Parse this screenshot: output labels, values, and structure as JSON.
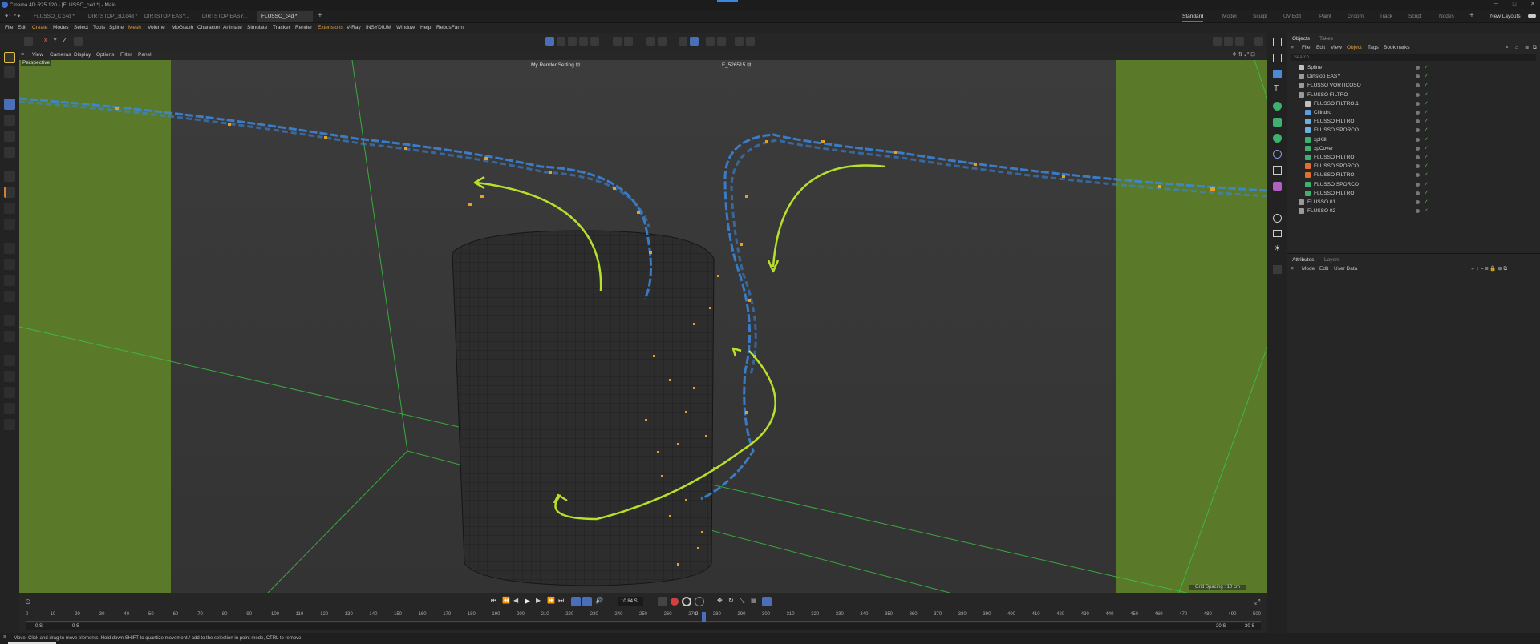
{
  "window": {
    "title": "Cinema 4D R25.120 - [FLUSSO_c4d *] - Main",
    "controls": [
      "─",
      "□",
      "✕"
    ]
  },
  "doc_tabs": [
    "FLUSSO_C.c4d *",
    "DIRTSTOP_3D.c4d *",
    "DIRTSTOP EASY...",
    "DIRTSTOP EASY...",
    "FLUSSO_c4d *"
  ],
  "layout_tabs": [
    "Standard",
    "Model",
    "Sculpt",
    "UV Edit",
    "Paint",
    "Groom",
    "Track",
    "Script",
    "Nodes"
  ],
  "new_layouts": "New Layouts",
  "menu": [
    "File",
    "Edit",
    "Create",
    "Modes",
    "Select",
    "Tools",
    "Spline",
    "Mesh",
    "Volume",
    "MoGraph",
    "Character",
    "Animate",
    "Simulate",
    "Tracker",
    "Render",
    "Extensions",
    "V-Ray",
    "INSYDIUM",
    "Window",
    "Help",
    "RebusFarm"
  ],
  "coord_buttons": [
    "X",
    "Y",
    "Z"
  ],
  "viewport": {
    "menu": [
      "View",
      "Cameras",
      "Display",
      "Options",
      "Filter",
      "Panel"
    ],
    "camera_label": "Perspective",
    "render_setting": "My Render Setting",
    "take_label": "F_526515",
    "grid_spacing": "Grid Spacing : 10 cm"
  },
  "objects_panel": {
    "tabs": [
      "Objects",
      "Takes"
    ],
    "menu": [
      "File",
      "Edit",
      "View",
      "Object",
      "Tags",
      "Bookmarks"
    ],
    "search_placeholder": "Search",
    "rows": [
      {
        "name": "Spline",
        "indent": 0,
        "color": "#c0c0c0"
      },
      {
        "name": "Dirtstop EASY",
        "indent": 0,
        "color": "#9a9a9a"
      },
      {
        "name": "FLUSSO VORTICOSO",
        "indent": 0,
        "color": "#9a9a9a"
      },
      {
        "name": "FLUSSO FILTRO",
        "indent": 0,
        "color": "#9a9a9a"
      },
      {
        "name": "FLUSSO FILTRO.1",
        "indent": 1,
        "color": "#c0c0c0"
      },
      {
        "name": "Cilindro",
        "indent": 1,
        "color": "#5aa0e0"
      },
      {
        "name": "FLUSSO FILTRO",
        "indent": 1,
        "color": "#6ab0e0"
      },
      {
        "name": "FLUSSO SPORCO",
        "indent": 1,
        "color": "#6ab0e0"
      },
      {
        "name": "xpKill",
        "indent": 1,
        "color": "#40b070"
      },
      {
        "name": "xpCover",
        "indent": 1,
        "color": "#40b070"
      },
      {
        "name": "FLUSSO FILTRO",
        "indent": 1,
        "color": "#40b070"
      },
      {
        "name": "FLUSSO SPORCO",
        "indent": 1,
        "color": "#e07030"
      },
      {
        "name": "FLUSSO FILTRO",
        "indent": 1,
        "color": "#e07030"
      },
      {
        "name": "FLUSSO SPORCO",
        "indent": 1,
        "color": "#40b070"
      },
      {
        "name": "FLUSSO FILTRO",
        "indent": 1,
        "color": "#40b070"
      },
      {
        "name": "FLUSSO 01",
        "indent": 0,
        "color": "#9a9a9a"
      },
      {
        "name": "FLUSSO 02",
        "indent": 0,
        "color": "#9a9a9a"
      }
    ]
  },
  "attributes_panel": {
    "tabs": [
      "Attributes",
      "Layers"
    ],
    "menu": [
      "Mode",
      "Edit",
      "User Data"
    ]
  },
  "timeline": {
    "current_frame": "10.84 S",
    "ticks": [
      "0",
      "10",
      "20",
      "30",
      "40",
      "50",
      "60",
      "70",
      "80",
      "90",
      "100",
      "110",
      "120",
      "130",
      "140",
      "150",
      "160",
      "170",
      "180",
      "190",
      "200",
      "210",
      "220",
      "230",
      "240",
      "250",
      "260",
      "270",
      "280",
      "290",
      "300",
      "310",
      "320",
      "330",
      "340",
      "350",
      "360",
      "370",
      "380",
      "390",
      "400",
      "410",
      "420",
      "430",
      "440",
      "450",
      "460",
      "470",
      "480",
      "490",
      "500"
    ],
    "playhead_marker": "2",
    "start_a": "0 S",
    "start_b": "0 S",
    "end_a": "20 S",
    "end_b": "20 S"
  },
  "status": "Move: Click and drag to move elements. Hold down SHIFT to quantize movement / add to the selection in point mode, CTRL to remove.",
  "colors": {
    "accent": "#4a78c8",
    "grass": "#5a7a2a",
    "arrow": "#b8e02a",
    "particle": "#e8a020",
    "flow": "#3a88e0",
    "grid_line": "#3ac840"
  }
}
